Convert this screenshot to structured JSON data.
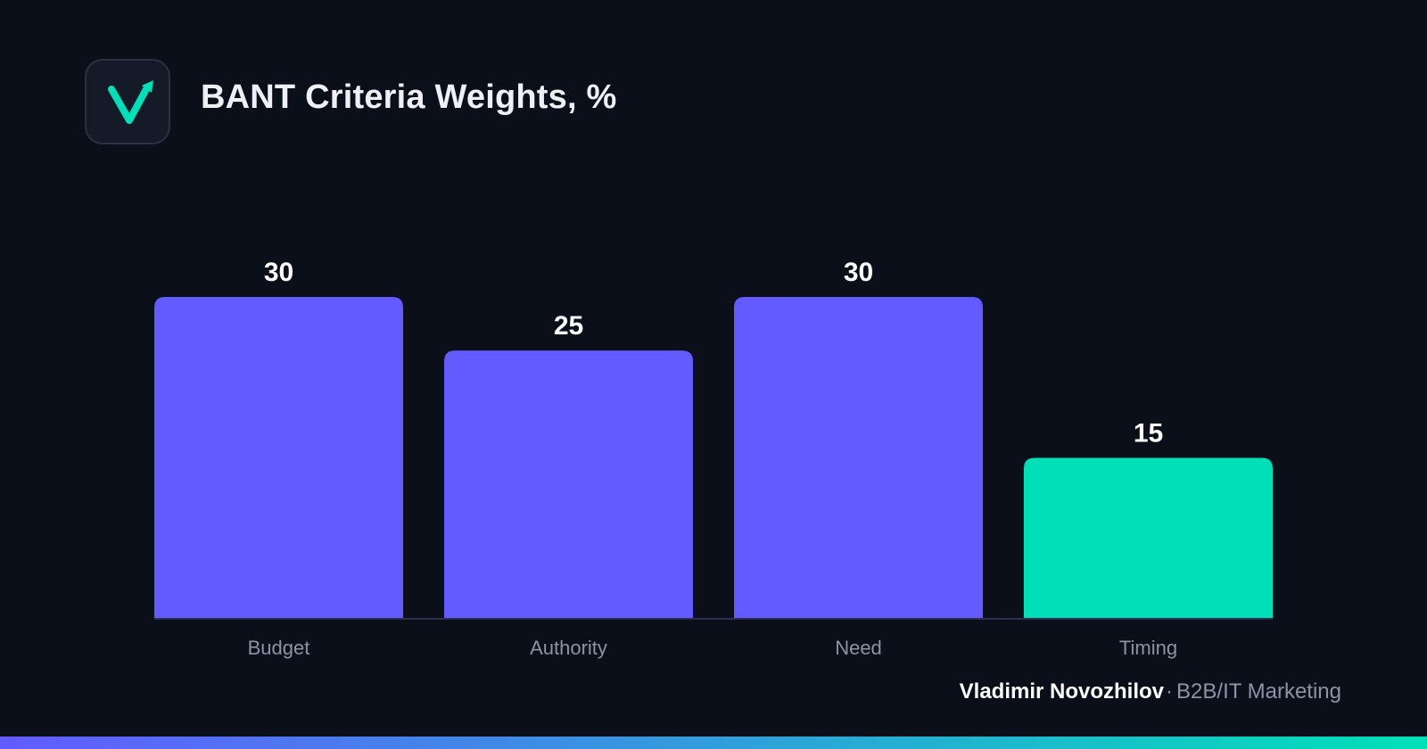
{
  "header": {
    "title": "BANT Criteria Weights, %"
  },
  "logo": {
    "icon": "checkmark-arrow-icon",
    "color": "#00e0b8"
  },
  "chart_data": {
    "type": "bar",
    "title": "BANT Criteria Weights, %",
    "xlabel": "",
    "ylabel": "",
    "categories": [
      "Budget",
      "Authority",
      "Need",
      "Timing"
    ],
    "values": [
      30,
      25,
      30,
      15
    ],
    "bar_colors": [
      "#635bff",
      "#635bff",
      "#635bff",
      "#00e0b8"
    ],
    "data_labels": true,
    "ylim": [
      0,
      30
    ],
    "grid": false,
    "legend": "none"
  },
  "footer": {
    "author": "Vladimir Novozhilov",
    "separator": "·",
    "tagline": "B2B/IT Marketing"
  },
  "theme": {
    "background": "#0b0f19",
    "accent_primary": "#635bff",
    "accent_secondary": "#00e0b8",
    "label_color": "#8d93a5",
    "value_color": "#ffffff",
    "baseline_color": "#2a3050"
  }
}
